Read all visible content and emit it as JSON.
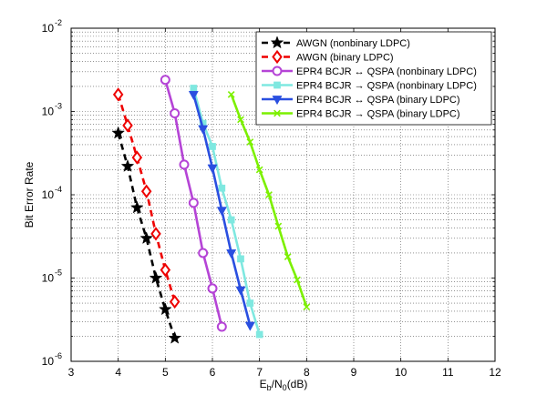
{
  "chart_data": {
    "type": "line",
    "title": "",
    "xlabel": {
      "main": "E",
      "sub1": "b",
      "slash": "/N",
      "sub2": "0",
      "unit": "(dB)"
    },
    "ylabel": "Bit Error Rate",
    "xlim": [
      3,
      12
    ],
    "ylim": [
      1e-06,
      0.01
    ],
    "yscale": "log",
    "grid": true,
    "legend_position": "top-right",
    "x_ticks": [
      3,
      4,
      5,
      6,
      7,
      8,
      9,
      10,
      11,
      12
    ],
    "x_tick_labels": [
      "3",
      "4",
      "5",
      "6",
      "7",
      "8",
      "9",
      "10",
      "11",
      "12"
    ],
    "y_ticks": [
      {
        "value": 1e-06,
        "base": "10",
        "exp": "-6"
      },
      {
        "value": 1e-05,
        "base": "10",
        "exp": "-5"
      },
      {
        "value": 0.0001,
        "base": "10",
        "exp": "-4"
      },
      {
        "value": 0.001,
        "base": "10",
        "exp": "-3"
      },
      {
        "value": 0.01,
        "base": "10",
        "exp": "-2"
      }
    ],
    "series": [
      {
        "name": "AWGN (nonbinary LDPC)",
        "color": "#000000",
        "dash": true,
        "marker": "star",
        "x": [
          4.0,
          4.2,
          4.4,
          4.6,
          4.8,
          5.0,
          5.2
        ],
        "y": [
          0.00055,
          0.00022,
          7e-05,
          3e-05,
          1e-05,
          4.2e-06,
          1.9e-06
        ]
      },
      {
        "name": "AWGN (binary LDPC)",
        "color": "#ee0000",
        "dash": true,
        "marker": "diamond",
        "x": [
          4.0,
          4.2,
          4.4,
          4.6,
          4.8,
          5.0,
          5.2
        ],
        "y": [
          0.0016,
          0.00068,
          0.00028,
          0.00011,
          3.4e-05,
          1.25e-05,
          5.2e-06
        ]
      },
      {
        "name": "EPR4 BCJR ↔ QSPA (nonbinary LDPC)",
        "color": "#b544d6",
        "dash": false,
        "marker": "circle",
        "x": [
          5.0,
          5.2,
          5.4,
          5.6,
          5.8,
          6.0,
          6.2
        ],
        "y": [
          0.0024,
          0.00095,
          0.00023,
          8e-05,
          2e-05,
          7.5e-06,
          2.6e-06
        ]
      },
      {
        "name": "EPR4 BCJR → QSPA (nonbinary LDPC)",
        "color": "#7fe8e0",
        "dash": false,
        "marker": "square",
        "x": [
          5.6,
          5.8,
          6.0,
          6.2,
          6.4,
          6.6,
          6.8,
          7.0
        ],
        "y": [
          0.0019,
          0.00072,
          0.00038,
          0.00012,
          5e-05,
          1.7e-05,
          5e-06,
          2.1e-06
        ]
      },
      {
        "name": "EPR4 BCJR ↔ QSPA (binary LDPC)",
        "color": "#2a4fe0",
        "dash": false,
        "marker": "triangle-down",
        "x": [
          5.6,
          5.8,
          6.0,
          6.2,
          6.4,
          6.6,
          6.8
        ],
        "y": [
          0.0016,
          0.00062,
          0.00021,
          6.5e-05,
          2e-05,
          7.2e-06,
          2.7e-06
        ]
      },
      {
        "name": "EPR4 BCJR → QSPA (binary LDPC)",
        "color": "#7cf000",
        "dash": false,
        "marker": "x",
        "x": [
          6.4,
          6.6,
          6.8,
          7.0,
          7.2,
          7.4,
          7.6,
          7.8,
          8.0
        ],
        "y": [
          0.0016,
          0.0008,
          0.00043,
          0.0002,
          0.0001,
          4.2e-05,
          1.8e-05,
          9.5e-06,
          4.5e-06
        ]
      }
    ]
  }
}
